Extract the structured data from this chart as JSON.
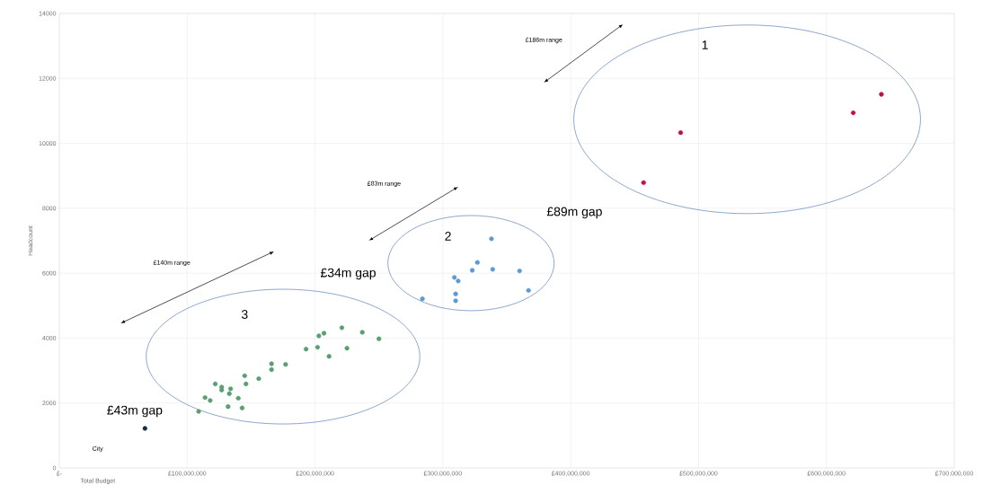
{
  "chart_data": {
    "type": "scatter",
    "xlabel": "Total Budget",
    "ylabel": "Headcount",
    "xlim": [
      0,
      700000000
    ],
    "ylim": [
      0,
      14000
    ],
    "xticks": [
      {
        "value": 0,
        "label": "£-"
      },
      {
        "value": 100000000,
        "label": "£100,000,000"
      },
      {
        "value": 200000000,
        "label": "£200,000,000"
      },
      {
        "value": 300000000,
        "label": "£300,000,000"
      },
      {
        "value": 400000000,
        "label": "£400,000,000"
      },
      {
        "value": 500000000,
        "label": "£500,000,000"
      },
      {
        "value": 600000000,
        "label": "£600,000,000"
      },
      {
        "value": 700000000,
        "label": "£700,000,000"
      }
    ],
    "yticks": [
      0,
      2000,
      4000,
      6000,
      8000,
      10000,
      12000,
      14000
    ],
    "grid": true,
    "marker": "circle",
    "series": [
      {
        "color": "#c0104a",
        "x": [
          457000000,
          486000000,
          621000000,
          643000000
        ],
        "values": [
          8790,
          10330,
          10940,
          11510
        ]
      },
      {
        "color": "#5b9bd5",
        "x": [
          284000000,
          309000000,
          312000000,
          310000000,
          310000000,
          323000000,
          327000000,
          338000000,
          339000000,
          360000000,
          367000000
        ],
        "values": [
          5210,
          5870,
          5760,
          5360,
          5150,
          6090,
          6330,
          7060,
          6120,
          6070,
          5470
        ]
      },
      {
        "color": "#5a9e74",
        "x": [
          109000000,
          114000000,
          118000000,
          122000000,
          127000000,
          127000000,
          132000000,
          133000000,
          134000000,
          140000000,
          143000000,
          145000000,
          146000000,
          156000000,
          166000000,
          166000000,
          177000000,
          193000000,
          202000000,
          203000000,
          207000000,
          211000000,
          221000000,
          225000000,
          237000000,
          250000000
        ],
        "values": [
          1740,
          2170,
          2080,
          2590,
          2490,
          2400,
          1890,
          2290,
          2440,
          2150,
          1850,
          2840,
          2590,
          2750,
          3210,
          3030,
          3190,
          3660,
          3720,
          4070,
          4150,
          3440,
          4320,
          3690,
          4180,
          3980
        ]
      },
      {
        "color": "#1f2d3d",
        "x": [
          67000000
        ],
        "values": [
          1220
        ]
      }
    ],
    "annotations": [
      "£186m range",
      "£83m range",
      "£140m range",
      "£89m gap",
      "£34m gap",
      "£43m gap",
      "1",
      "2",
      "3",
      "City"
    ]
  }
}
